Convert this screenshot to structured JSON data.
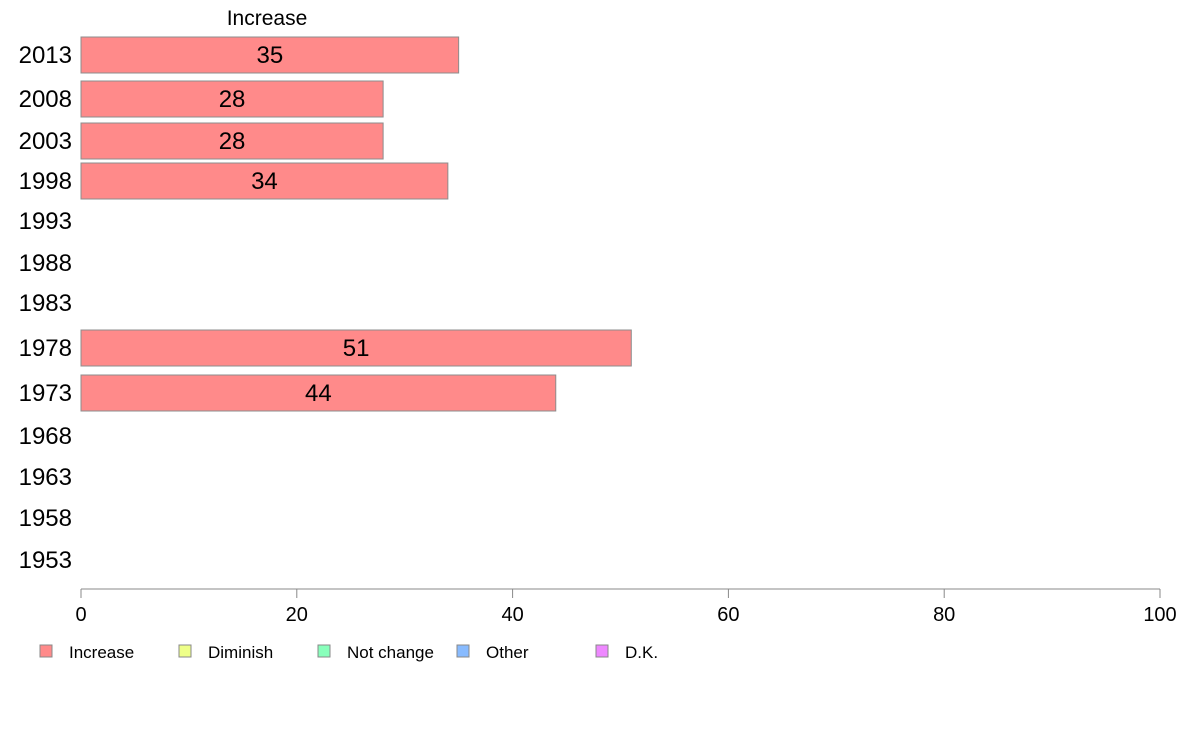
{
  "chart_data": {
    "type": "bar",
    "orientation": "horizontal",
    "series_title": "Increase",
    "categories": [
      "2013",
      "2008",
      "2003",
      "1998",
      "1993",
      "1988",
      "1983",
      "1978",
      "1973",
      "1968",
      "1963",
      "1958",
      "1953"
    ],
    "series": [
      {
        "name": "Increase",
        "color": "#ff8a8a",
        "values": [
          35,
          28,
          28,
          34,
          null,
          null,
          null,
          51,
          44,
          null,
          null,
          null,
          null
        ]
      }
    ],
    "xlim": [
      0,
      100
    ],
    "xticks": [
      0,
      20,
      40,
      60,
      80,
      100
    ],
    "grid": false,
    "legend": {
      "placement": "bottom-left",
      "entries": [
        {
          "label": "Increase",
          "color": "#ff8a8a"
        },
        {
          "label": "Diminish",
          "color": "#eeff88"
        },
        {
          "label": "Not change",
          "color": "#88ffbb"
        },
        {
          "label": "Other",
          "color": "#88bbff"
        },
        {
          "label": "D.K.",
          "color": "#ee88ff"
        }
      ]
    }
  }
}
